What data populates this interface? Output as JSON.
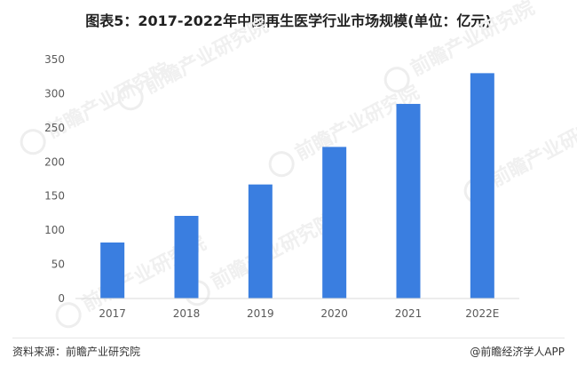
{
  "chart_data": {
    "type": "bar",
    "title": "图表5：2017-2022年中国再生医学行业市场规模(单位：亿元)",
    "categories": [
      "2017",
      "2018",
      "2019",
      "2020",
      "2021",
      "2022E"
    ],
    "values": [
      82,
      121,
      167,
      222,
      285,
      330
    ],
    "ylim": [
      0,
      350
    ],
    "yticks": [
      0,
      50,
      100,
      150,
      200,
      250,
      300,
      350
    ],
    "grid": false,
    "bar_color": "#3a7ee0"
  },
  "footer": {
    "source": "资料来源：前瞻产业研究院",
    "brand": "@前瞻经济学人APP"
  },
  "watermark": {
    "text": "前瞻产业研究院"
  }
}
